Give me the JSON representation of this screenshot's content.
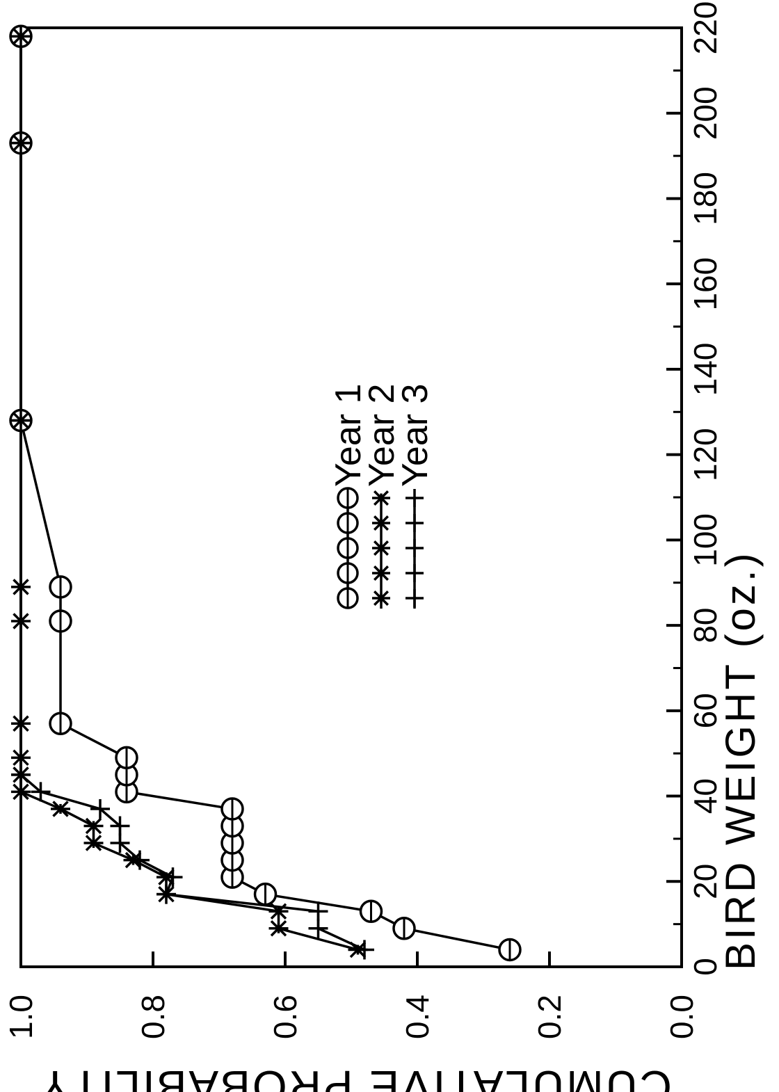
{
  "chart_data": {
    "type": "line",
    "xlabel": "BIRD WEIGHT (oz.)",
    "ylabel": "CUMULATIVE PROBABILITY",
    "xlim": [
      0,
      220
    ],
    "ylim": [
      0.0,
      1.0
    ],
    "xticks": [
      "0",
      "20",
      "40",
      "60",
      "80",
      "100",
      "120",
      "140",
      "160",
      "180",
      "200",
      "220"
    ],
    "yticks": [
      "0.0",
      "0.2",
      "0.4",
      "0.6",
      "0.8",
      "1.0"
    ],
    "orientation": "rotated 90 degrees clockwise (x axis on right, y axis on bottom)",
    "grid": false,
    "legend": "center",
    "series": [
      {
        "name": "Year 1",
        "marker": "circle",
        "points": [
          [
            4,
            0.26
          ],
          [
            9,
            0.42
          ],
          [
            13,
            0.47
          ],
          [
            17,
            0.63
          ],
          [
            21,
            0.68
          ],
          [
            25,
            0.68
          ],
          [
            29,
            0.68
          ],
          [
            33,
            0.68
          ],
          [
            37,
            0.68
          ],
          [
            41,
            0.84
          ],
          [
            45,
            0.84
          ],
          [
            49,
            0.84
          ],
          [
            57,
            0.94
          ],
          [
            81,
            0.94
          ],
          [
            89,
            0.94
          ],
          [
            128,
            1.0
          ],
          [
            193,
            1.0
          ],
          [
            218,
            1.0
          ]
        ]
      },
      {
        "name": "Year 2",
        "marker": "asterisk",
        "points": [
          [
            4,
            0.49
          ],
          [
            9,
            0.61
          ],
          [
            13,
            0.61
          ],
          [
            17,
            0.78
          ],
          [
            21,
            0.78
          ],
          [
            25,
            0.83
          ],
          [
            29,
            0.89
          ],
          [
            33,
            0.89
          ],
          [
            37,
            0.94
          ],
          [
            41,
            1.0
          ],
          [
            45,
            1.0
          ],
          [
            49,
            1.0
          ],
          [
            57,
            1.0
          ],
          [
            81,
            1.0
          ],
          [
            89,
            1.0
          ],
          [
            128,
            1.0
          ],
          [
            193,
            1.0
          ],
          [
            218,
            1.0
          ]
        ]
      },
      {
        "name": "Year 3",
        "marker": "plus",
        "points": [
          [
            4,
            0.48
          ],
          [
            9,
            0.55
          ],
          [
            13,
            0.55
          ],
          [
            17,
            0.78
          ],
          [
            21,
            0.77
          ],
          [
            25,
            0.82
          ],
          [
            29,
            0.85
          ],
          [
            33,
            0.85
          ],
          [
            37,
            0.88
          ],
          [
            41,
            0.97
          ],
          [
            45,
            1.0
          ],
          [
            128,
            1.0
          ],
          [
            193,
            1.0
          ],
          [
            218,
            1.0
          ]
        ]
      }
    ]
  }
}
